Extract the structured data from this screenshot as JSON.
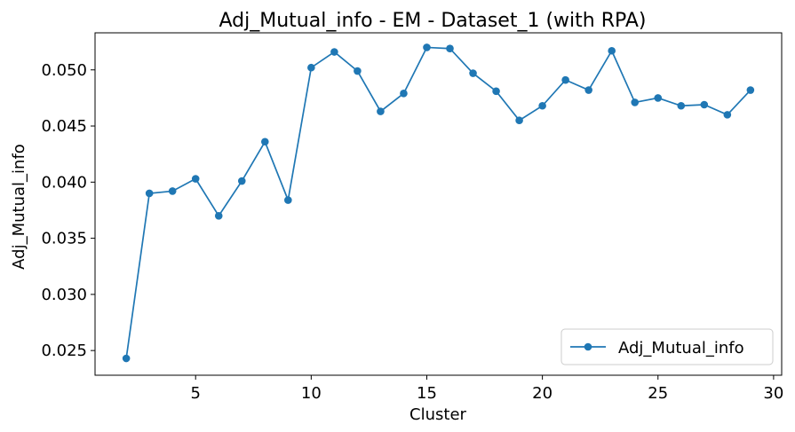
{
  "chart_data": {
    "type": "line",
    "title": "Adj_Mutual_info - EM - Dataset_1 (with RPA)",
    "xlabel": "Cluster",
    "ylabel": "Adj_Mutual_info",
    "xlim": [
      0.65,
      30.35
    ],
    "ylim": [
      0.0228,
      0.0533
    ],
    "xticks": [
      5,
      10,
      15,
      20,
      25,
      30
    ],
    "yticks": [
      0.025,
      0.03,
      0.035,
      0.04,
      0.045,
      0.05
    ],
    "ytick_labels": [
      "0.025",
      "0.030",
      "0.035",
      "0.040",
      "0.045",
      "0.050"
    ],
    "grid": false,
    "legend_position": "lower-right",
    "color": "#1f77b4",
    "series": [
      {
        "name": "Adj_Mutual_info",
        "x": [
          2,
          3,
          4,
          5,
          6,
          7,
          8,
          9,
          10,
          11,
          12,
          13,
          14,
          15,
          16,
          17,
          18,
          19,
          20,
          21,
          22,
          23,
          24,
          25,
          26,
          27,
          28,
          29
        ],
        "y": [
          0.0243,
          0.039,
          0.0392,
          0.0403,
          0.037,
          0.0401,
          0.0436,
          0.0384,
          0.0502,
          0.0516,
          0.0499,
          0.0463,
          0.0479,
          0.052,
          0.0519,
          0.0497,
          0.0481,
          0.0455,
          0.0468,
          0.0491,
          0.0482,
          0.0517,
          0.0471,
          0.0475,
          0.0468,
          0.0469,
          0.046,
          0.0482
        ]
      }
    ]
  }
}
